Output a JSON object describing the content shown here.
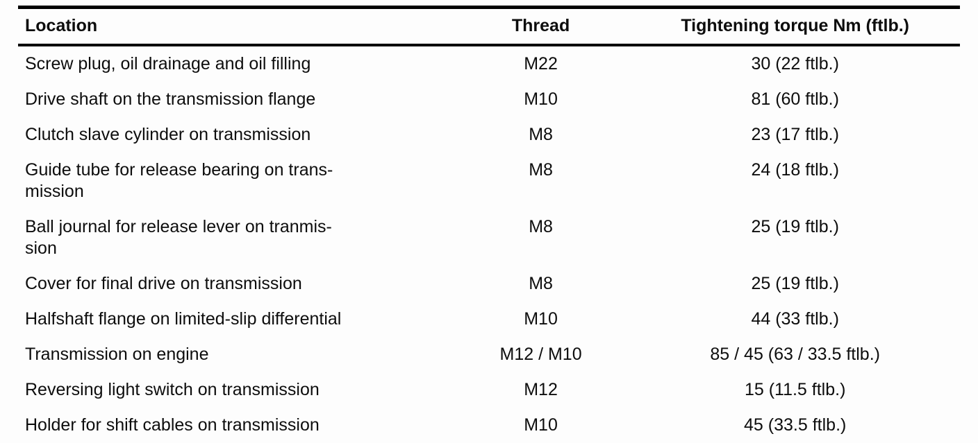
{
  "table": {
    "headers": {
      "location": "Location",
      "thread": "Thread",
      "torque": "Tightening torque Nm (ftlb.)"
    },
    "rows": [
      {
        "location": "Screw plug, oil drainage and oil filling",
        "thread": "M22",
        "torque": "30 (22 ftlb.)"
      },
      {
        "location": "Drive shaft on the transmission flange",
        "thread": "M10",
        "torque": "81 (60 ftlb.)"
      },
      {
        "location": "Clutch slave cylinder on transmission",
        "thread": "M8",
        "torque": "23 (17 ftlb.)"
      },
      {
        "location": "Guide tube for release bearing on trans-\nmission",
        "thread": "M8",
        "torque": "24 (18 ftlb.)"
      },
      {
        "location": "Ball journal for release lever on tranmis-\nsion",
        "thread": "M8",
        "torque": "25 (19 ftlb.)"
      },
      {
        "location": "Cover for final drive on transmission",
        "thread": "M8",
        "torque": "25 (19 ftlb.)"
      },
      {
        "location": "Halfshaft flange on limited-slip differential",
        "thread": "M10",
        "torque": "44 (33 ftlb.)"
      },
      {
        "location": "Transmission on engine",
        "thread": "M12 / M10",
        "torque": "85 / 45 (63 / 33.5 ftlb.)"
      },
      {
        "location": "Reversing light switch on transmission",
        "thread": "M12",
        "torque": "15 (11.5 ftlb.)"
      },
      {
        "location": "Holder for shift cables on transmission",
        "thread": "M10",
        "torque": "45 (33.5 ftlb.)"
      }
    ]
  }
}
